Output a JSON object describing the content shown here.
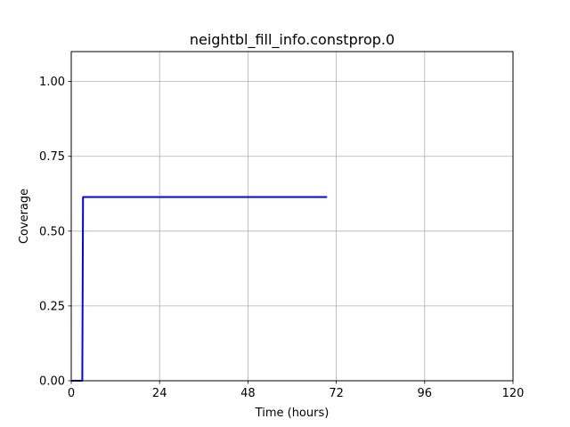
{
  "chart_data": {
    "type": "line",
    "title": "neightbl_fill_info.constprop.0",
    "xlabel": "Time (hours)",
    "ylabel": "Coverage",
    "xlim": [
      0,
      120
    ],
    "ylim": [
      0,
      1.1
    ],
    "xticks": [
      0,
      24,
      48,
      72,
      96,
      120
    ],
    "xtick_labels": [
      "0",
      "24",
      "48",
      "72",
      "96",
      "120"
    ],
    "yticks": [
      0.0,
      0.25,
      0.5,
      0.75,
      1.0
    ],
    "ytick_labels": [
      "0.00",
      "0.25",
      "0.50",
      "0.75",
      "1.00"
    ],
    "grid": true,
    "series": [
      {
        "color": "#0000ff",
        "x": [
          0,
          3.0,
          3.2,
          69.5
        ],
        "y": [
          0,
          0,
          0.614,
          0.614
        ]
      }
    ]
  }
}
